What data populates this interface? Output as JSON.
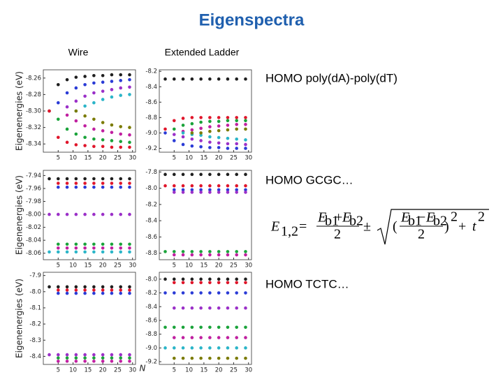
{
  "title": "Eigenspectra",
  "columns": [
    "Wire",
    "Extended Ladder"
  ],
  "labels": [
    "HOMO poly(dA)-poly(dT)",
    "HOMO GCGC…",
    "HOMO TCTC…"
  ],
  "formula": {
    "E": "E",
    "lhs_sub": "1,2",
    "eq": "=",
    "b1": "b1",
    "b2": "b2",
    "plus": "+",
    "minus": "−",
    "two": "2",
    "pm": "±",
    "t": "t",
    "open": "(",
    "close": ")"
  },
  "chart_data": [
    {
      "type": "scatter",
      "ylabel": "Eigenenergies (eV)",
      "x": [
        2,
        5,
        8,
        11,
        14,
        17,
        20,
        23,
        26,
        29
      ],
      "xlim": [
        0,
        31
      ],
      "xticks": [
        5,
        10,
        15,
        20,
        25,
        30
      ],
      "ylim": [
        -8.35,
        -8.25
      ],
      "yticks": [
        -8.26,
        -8.28,
        {
          "value": -8.3,
          "label": "-8.30"
        },
        -8.32,
        -8.34
      ],
      "series": [
        {
          "color": "#1f1f1f",
          "values": [
            -8.3,
            -8.268,
            -8.262,
            -8.259,
            -8.258,
            -8.257,
            -8.257,
            -8.256,
            -8.256,
            -8.256
          ]
        },
        {
          "color": "#e0162b",
          "values": [
            -8.3,
            -8.332,
            -8.338,
            -8.341,
            -8.342,
            -8.343,
            -8.343,
            -8.344,
            -8.344,
            -8.344
          ]
        },
        {
          "color": "#2a3bd6",
          "values": [
            null,
            -8.29,
            -8.278,
            -8.272,
            -8.268,
            -8.266,
            -8.265,
            -8.264,
            -8.263,
            -8.262
          ]
        },
        {
          "color": "#1aa33a",
          "values": [
            null,
            -8.31,
            -8.322,
            -8.328,
            -8.332,
            -8.334,
            -8.335,
            -8.336,
            -8.337,
            -8.338
          ]
        },
        {
          "color": "#9b30c8",
          "values": [
            null,
            null,
            -8.295,
            -8.288,
            -8.282,
            -8.278,
            -8.276,
            -8.274,
            -8.272,
            -8.271
          ]
        },
        {
          "color": "#c020a0",
          "values": [
            null,
            null,
            -8.305,
            -8.312,
            -8.318,
            -8.322,
            -8.324,
            -8.326,
            -8.328,
            -8.329
          ]
        },
        {
          "color": "#2bb5c8",
          "values": [
            null,
            null,
            null,
            -8.3,
            -8.294,
            -8.29,
            -8.286,
            -8.283,
            -8.281,
            -8.28
          ]
        },
        {
          "color": "#7b7b00",
          "values": [
            null,
            null,
            null,
            -8.3,
            -8.306,
            -8.31,
            -8.314,
            -8.317,
            -8.319,
            -8.32
          ]
        }
      ]
    },
    {
      "type": "scatter",
      "x": [
        2,
        5,
        8,
        11,
        14,
        17,
        20,
        23,
        26,
        29
      ],
      "xlim": [
        0,
        31
      ],
      "xticks": [
        5,
        10,
        15,
        20,
        25,
        30
      ],
      "ylim": [
        -9.25,
        -8.18
      ],
      "yticks": [
        -8.2,
        -8.4,
        -8.6,
        -8.8,
        {
          "value": -9,
          "label": "-9.0"
        },
        -9.2
      ],
      "series": [
        {
          "color": "#1f1f1f",
          "values": [
            -8.3,
            -8.3,
            -8.3,
            -8.3,
            -8.3,
            -8.3,
            -8.3,
            -8.3,
            -8.3,
            -8.3
          ]
        },
        {
          "color": "#e0162b",
          "values": [
            -8.95,
            -8.84,
            -8.81,
            -8.8,
            -8.8,
            -8.8,
            -8.8,
            -8.8,
            -8.8,
            -8.8
          ]
        },
        {
          "color": "#2a3bd6",
          "values": [
            -9,
            -9.1,
            -9.15,
            -9.17,
            -9.18,
            -9.19,
            -9.19,
            -9.2,
            -9.2,
            -9.2
          ]
        },
        {
          "color": "#1aa33a",
          "values": [
            null,
            -8.95,
            -8.9,
            -8.88,
            -8.86,
            -8.85,
            -8.85,
            -8.84,
            -8.84,
            -8.84
          ]
        },
        {
          "color": "#9b30c8",
          "values": [
            null,
            -9.02,
            -9.05,
            -9.08,
            -9.1,
            -9.12,
            -9.13,
            -9.14,
            -9.14,
            -9.15
          ]
        },
        {
          "color": "#c020a0",
          "values": [
            null,
            null,
            -8.98,
            -8.96,
            -8.94,
            -8.92,
            -8.91,
            -8.9,
            -8.89,
            -8.89
          ]
        },
        {
          "color": "#2bb5c8",
          "values": [
            null,
            null,
            -9,
            -9.02,
            -9.03,
            -9.05,
            -9.06,
            -9.07,
            -9.08,
            -9.09
          ]
        },
        {
          "color": "#7b7b00",
          "values": [
            null,
            null,
            null,
            -9,
            -9,
            -8.98,
            -8.97,
            -8.96,
            -8.95,
            -8.95
          ]
        }
      ]
    },
    {
      "type": "scatter",
      "ylabel": "Eigenenergies (eV)",
      "x": [
        2,
        5,
        8,
        11,
        14,
        17,
        20,
        23,
        26,
        29
      ],
      "xlim": [
        0,
        31
      ],
      "xticks": [
        5,
        10,
        15,
        20,
        25,
        30
      ],
      "ylim": [
        -8.07,
        -7.932
      ],
      "yticks": [
        -7.94,
        -7.96,
        -7.98,
        {
          "value": -8,
          "label": "-8.00"
        },
        -8.02,
        -8.04,
        -8.06
      ],
      "series": [
        {
          "color": "#1f1f1f",
          "values": [
            -7.945,
            -7.945,
            -7.945,
            -7.945,
            -7.945,
            -7.945,
            -7.945,
            -7.945,
            -7.945,
            -7.945
          ]
        },
        {
          "color": "#e0162b",
          "values": [
            null,
            -7.952,
            -7.952,
            -7.952,
            -7.952,
            -7.952,
            -7.952,
            -7.952,
            -7.952,
            -7.952
          ]
        },
        {
          "color": "#2a3bd6",
          "values": [
            null,
            -7.958,
            -7.958,
            -7.958,
            -7.958,
            -7.958,
            -7.958,
            -7.958,
            -7.958,
            -7.958
          ]
        },
        {
          "color": "#9b30c8",
          "values": [
            -8,
            -8,
            -8,
            -8,
            -8,
            -8,
            -8,
            -8,
            -8,
            -8
          ]
        },
        {
          "color": "#1aa33a",
          "values": [
            null,
            -8.046,
            -8.046,
            -8.046,
            -8.046,
            -8.046,
            -8.046,
            -8.046,
            -8.046,
            -8.046
          ]
        },
        {
          "color": "#c020a0",
          "values": [
            null,
            -8.052,
            -8.052,
            -8.052,
            -8.052,
            -8.052,
            -8.052,
            -8.052,
            -8.052,
            -8.052
          ]
        },
        {
          "color": "#2bb5c8",
          "values": [
            -8.058,
            -8.058,
            -8.058,
            -8.058,
            -8.058,
            -8.058,
            -8.058,
            -8.058,
            -8.058,
            -8.058
          ]
        }
      ]
    },
    {
      "type": "scatter",
      "x": [
        2,
        5,
        8,
        11,
        14,
        17,
        20,
        23,
        26,
        29
      ],
      "xlim": [
        0,
        31
      ],
      "xticks": [
        5,
        10,
        15,
        20,
        25,
        30
      ],
      "ylim": [
        -8.88,
        -7.78
      ],
      "yticks": [
        -7.8,
        {
          "value": -8,
          "label": "-8.0"
        },
        -8.2,
        -8.4,
        -8.6,
        -8.8
      ],
      "series": [
        {
          "color": "#1f1f1f",
          "values": [
            -7.83,
            -7.83,
            -7.83,
            -7.83,
            -7.83,
            -7.83,
            -7.83,
            -7.83,
            -7.83,
            -7.83
          ]
        },
        {
          "color": "#e0162b",
          "values": [
            -7.97,
            -7.97,
            -7.97,
            -7.97,
            -7.97,
            -7.97,
            -7.97,
            -7.97,
            -7.97,
            -7.97
          ]
        },
        {
          "color": "#2a3bd6",
          "values": [
            null,
            -8.02,
            -8.02,
            -8.02,
            -8.02,
            -8.02,
            -8.02,
            -8.02,
            -8.02,
            -8.02
          ]
        },
        {
          "color": "#9b30c8",
          "values": [
            null,
            -8.05,
            -8.05,
            -8.05,
            -8.05,
            -8.05,
            -8.05,
            -8.05,
            -8.05,
            -8.05
          ]
        },
        {
          "color": "#1aa33a",
          "values": [
            -8.78,
            -8.78,
            -8.78,
            -8.78,
            -8.78,
            -8.78,
            -8.78,
            -8.78,
            -8.78,
            -8.78
          ]
        },
        {
          "color": "#c020a0",
          "values": [
            null,
            -8.82,
            -8.82,
            -8.82,
            -8.82,
            -8.82,
            -8.82,
            -8.82,
            -8.82,
            -8.82
          ]
        }
      ]
    },
    {
      "type": "scatter",
      "ylabel": "Eigenenergies (eV)",
      "x": [
        2,
        5,
        8,
        11,
        14,
        17,
        20,
        23,
        26,
        29
      ],
      "xlim": [
        0,
        31
      ],
      "xticks": [
        5,
        10,
        15,
        20,
        25,
        30
      ],
      "ylim": [
        -8.45,
        -7.88
      ],
      "yticks": [
        -7.9,
        {
          "value": -8,
          "label": "-8.0"
        },
        -8.1,
        -8.2,
        -8.3,
        -8.4
      ],
      "series": [
        {
          "color": "#1f1f1f",
          "values": [
            -7.97,
            -7.97,
            -7.97,
            -7.97,
            -7.97,
            -7.97,
            -7.97,
            -7.97,
            -7.97,
            -7.97
          ]
        },
        {
          "color": "#e0162b",
          "values": [
            null,
            -7.99,
            -7.99,
            -7.99,
            -7.99,
            -7.99,
            -7.99,
            -7.99,
            -7.99,
            -7.99
          ]
        },
        {
          "color": "#2a3bd6",
          "values": [
            null,
            -8.01,
            -8.01,
            -8.01,
            -8.01,
            -8.01,
            -8.01,
            -8.01,
            -8.01,
            -8.01
          ]
        },
        {
          "color": "#9b30c8",
          "values": [
            -8.39,
            -8.39,
            -8.39,
            -8.39,
            -8.39,
            -8.39,
            -8.39,
            -8.39,
            -8.39,
            -8.39
          ]
        },
        {
          "color": "#1aa33a",
          "values": [
            null,
            -8.41,
            -8.41,
            -8.41,
            -8.41,
            -8.41,
            -8.41,
            -8.41,
            -8.41,
            -8.41
          ]
        },
        {
          "color": "#c020a0",
          "values": [
            null,
            -8.43,
            -8.43,
            -8.43,
            -8.43,
            -8.43,
            -8.43,
            -8.43,
            -8.43,
            -8.43
          ]
        }
      ]
    },
    {
      "type": "scatter",
      "xlabel": "N",
      "x": [
        2,
        5,
        8,
        11,
        14,
        17,
        20,
        23,
        26,
        29
      ],
      "xlim": [
        0,
        31
      ],
      "xticks": [
        5,
        10,
        15,
        20,
        25,
        30
      ],
      "ylim": [
        -9.24,
        -7.9
      ],
      "yticks": [
        {
          "value": -8,
          "label": "-8.0"
        },
        -8.2,
        -8.4,
        -8.6,
        -8.8,
        {
          "value": -9,
          "label": "-9.0"
        },
        -9.2
      ],
      "series": [
        {
          "color": "#1f1f1f",
          "values": [
            -8,
            -8,
            -8,
            -8,
            -8,
            -8,
            -8,
            -8,
            -8,
            -8
          ]
        },
        {
          "color": "#e0162b",
          "values": [
            null,
            -8.05,
            -8.05,
            -8.05,
            -8.05,
            -8.05,
            -8.05,
            -8.05,
            -8.05,
            -8.05
          ]
        },
        {
          "color": "#2a3bd6",
          "values": [
            -8.2,
            -8.2,
            -8.2,
            -8.2,
            -8.2,
            -8.2,
            -8.2,
            -8.2,
            -8.2,
            -8.2
          ]
        },
        {
          "color": "#9b30c8",
          "values": [
            null,
            -8.42,
            -8.42,
            -8.42,
            -8.42,
            -8.42,
            -8.42,
            -8.42,
            -8.42,
            -8.42
          ]
        },
        {
          "color": "#1aa33a",
          "values": [
            -8.7,
            -8.7,
            -8.7,
            -8.7,
            -8.7,
            -8.7,
            -8.7,
            -8.7,
            -8.7,
            -8.7
          ]
        },
        {
          "color": "#c020a0",
          "values": [
            null,
            -8.85,
            -8.85,
            -8.85,
            -8.85,
            -8.85,
            -8.85,
            -8.85,
            -8.85,
            -8.85
          ]
        },
        {
          "color": "#2bb5c8",
          "values": [
            -9,
            -9,
            -9,
            -9,
            -9,
            -9,
            -9,
            -9,
            -9,
            -9
          ]
        },
        {
          "color": "#7b7b00",
          "values": [
            null,
            -9.15,
            -9.15,
            -9.15,
            -9.15,
            -9.15,
            -9.15,
            -9.15,
            -9.15,
            -9.15
          ]
        }
      ]
    }
  ]
}
